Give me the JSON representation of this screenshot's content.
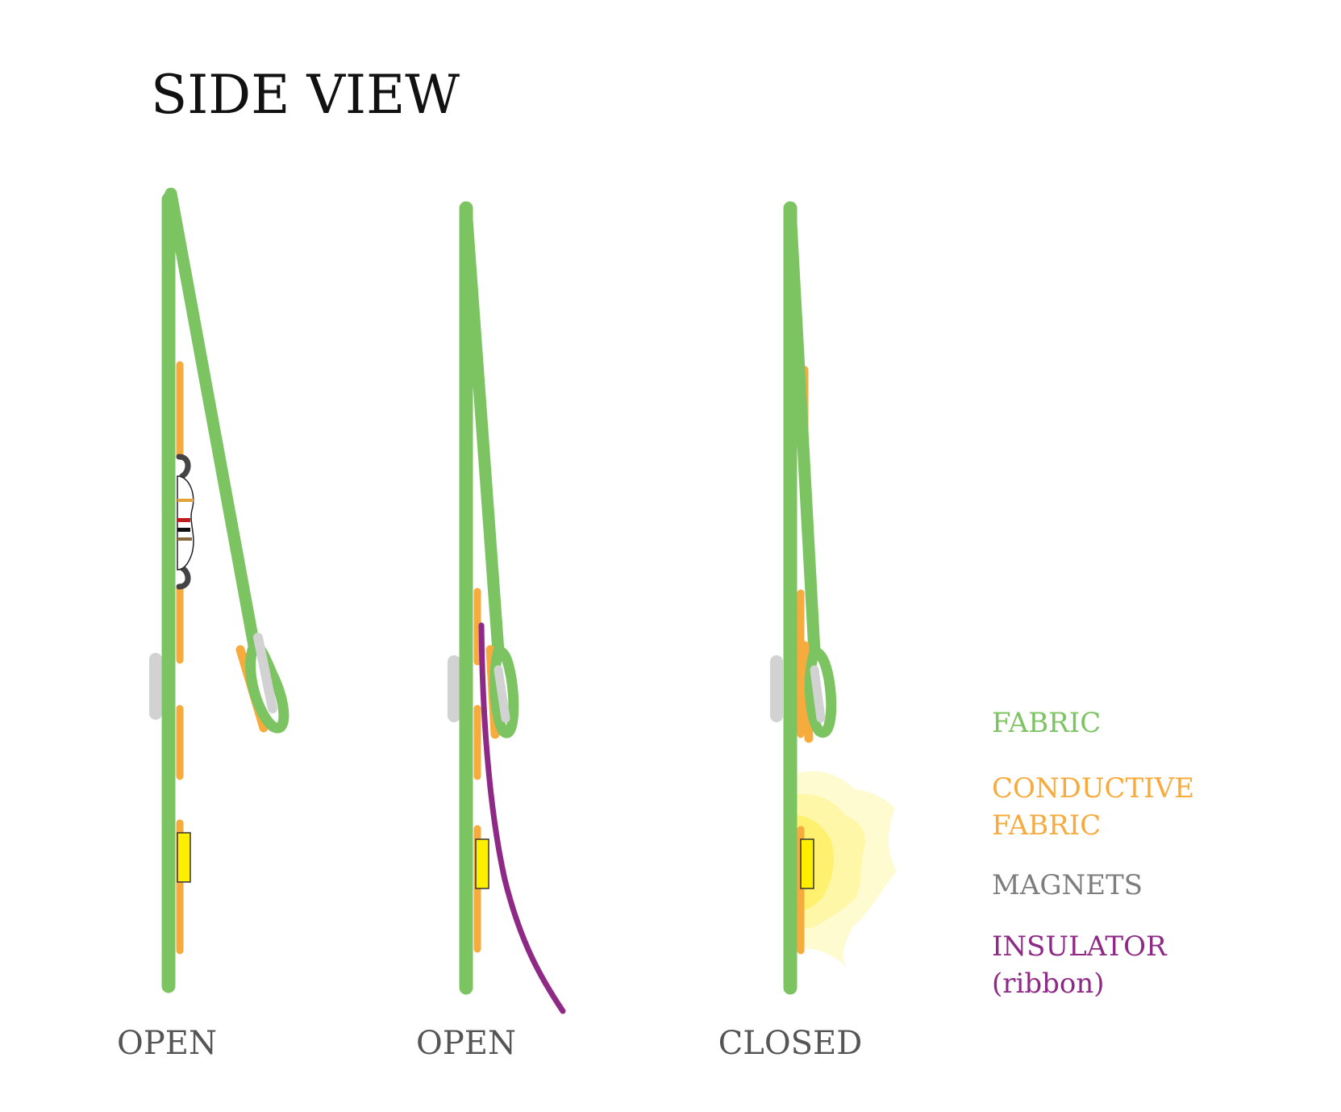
{
  "title": "SIDE VIEW",
  "panels": [
    {
      "label": "OPEN"
    },
    {
      "label": "OPEN"
    },
    {
      "label": "CLOSED"
    }
  ],
  "legend": [
    {
      "label": "FABRIC",
      "color": "#7cc462"
    },
    {
      "label": "CONDUCTIVE",
      "label2": "FABRIC",
      "color": "#f7ab3c"
    },
    {
      "label": "MAGNETS",
      "color": "#7d7d7d"
    },
    {
      "label": "INSULATOR",
      "label2": "(ribbon)",
      "color": "#8e2a86"
    }
  ],
  "colors": {
    "fabric": "#7cc462",
    "conductive": "#f7ab3c",
    "magnet": "#d2d2d2",
    "insulator": "#8e2a86",
    "led": "#ffee00",
    "glow": "#fff7a0"
  }
}
